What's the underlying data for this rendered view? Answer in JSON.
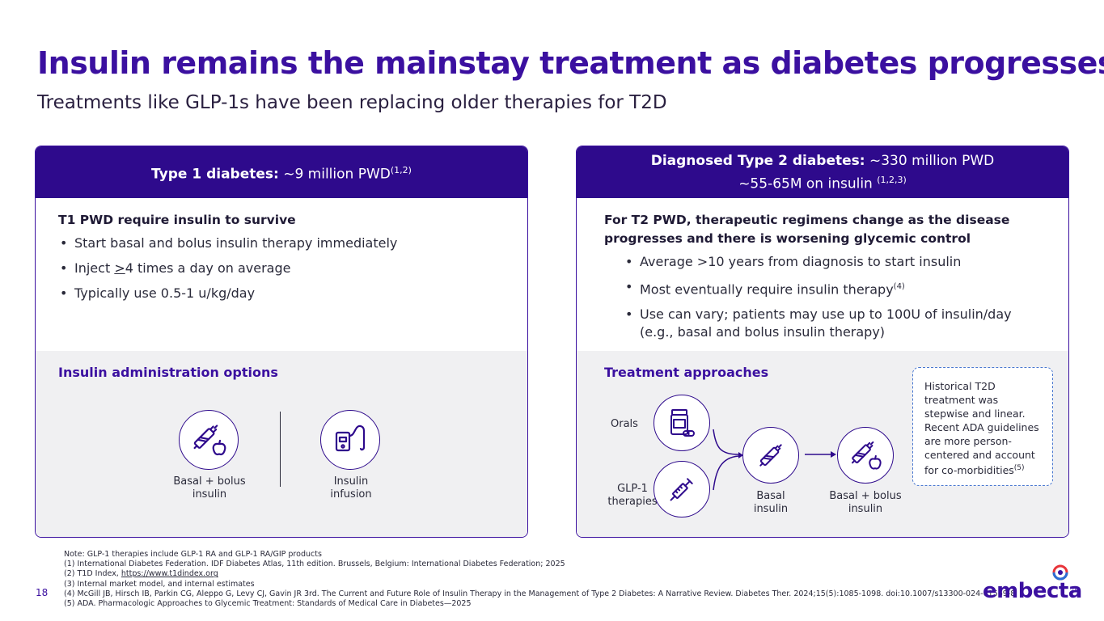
{
  "slide": {
    "title": "Insulin remains the mainstay treatment as diabetes progresses",
    "subtitle": "Treatments like GLP-1s have been replacing older therapies for T2D",
    "page_number": "18"
  },
  "left_card": {
    "header_bold": "Type 1 diabetes:",
    "header_text": " ~9 million PWD",
    "header_sup": "(1,2)",
    "lead": "T1 PWD require insulin to survive",
    "bullets": [
      "Start basal and bolus insulin therapy immediately",
      "Typically use 0.5-1 u/kg/day"
    ],
    "bullet_inject_pre": "Inject ",
    "bullet_inject_ge": ">",
    "bullet_inject_post": "4 times a day on average",
    "section_title": "Insulin administration options",
    "options": [
      {
        "label_line1": "Basal + bolus",
        "label_line2": "insulin",
        "icon": "pen-apple-icon"
      },
      {
        "label_line1": "Insulin",
        "label_line2": "infusion",
        "icon": "insulin-pump-icon"
      }
    ]
  },
  "right_card": {
    "header_bold": "Diagnosed Type 2 diabetes:",
    "header_text": " ~330 million PWD",
    "header_line2": "~55-65M on insulin ",
    "header_sup": "(1,2,3)",
    "lead_line1": "For T2 PWD, therapeutic regimens change as the disease",
    "lead_line2": "progresses and there is worsening glycemic control",
    "bullets": [
      "Average >10 years from diagnosis to start insulin",
      "Most eventually require insulin therapy",
      "Use can vary; patients may use up to 100U of insulin/day",
      "(e.g., basal and bolus insulin therapy)"
    ],
    "bullet2_sup": "(4)",
    "section_title": "Treatment approaches",
    "approaches": {
      "orals": "Orals",
      "glp1_line1": "GLP-1",
      "glp1_line2": "therapies",
      "basal_line1": "Basal",
      "basal_line2": "insulin",
      "basal_bolus_line1": "Basal + bolus",
      "basal_bolus_line2": "insulin"
    },
    "note": "Historical T2D treatment was stepwise and linear. Recent ADA guidelines are more person-centered and account for co-morbidities",
    "note_sup": "(5)"
  },
  "footer": {
    "note": "Note: GLP-1 therapies include GLP-1 RA and GLP-1 RA/GIP products",
    "ref1": "(1) International Diabetes Federation. IDF Diabetes Atlas, 11th edition. Brussels, Belgium: International Diabetes Federation; 2025",
    "ref2_prefix": "(2) T1D Index, ",
    "ref2_link": "https://www.t1dindex.org",
    "ref3": "(3) Internal market model, and internal estimates",
    "ref4": "(4) McGill JB, Hirsch IB, Parkin CG, Aleppo G, Levy CJ, Gavin JR 3rd. The Current and Future Role of Insulin Therapy in the Management of Type 2 Diabetes: A Narrative Review. Diabetes Ther. 2024;15(5):1085-1098. doi:10.1007/s13300-024-01569-8",
    "ref5": "(5) ADA. Pharmacologic Approaches to Glycemic Treatment: Standards of Medical Care in Diabetes—2025"
  },
  "logo": {
    "text": "embecta",
    "tm": "TM"
  },
  "colors": {
    "primary": "#3b10a0",
    "header_bg": "#2e0a8c",
    "panel_bg": "#f0f0f2",
    "accent_red": "#e8343a",
    "accent_blue": "#2b6fd6"
  }
}
